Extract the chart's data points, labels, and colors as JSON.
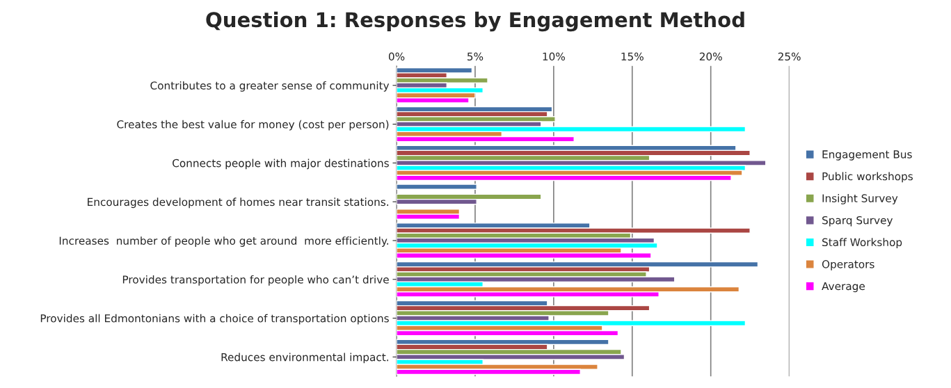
{
  "chart_data": {
    "type": "bar",
    "orientation": "horizontal",
    "title": "Question 1: Responses by Engagement Method",
    "categories": [
      "Contributes to a greater sense of community",
      "Creates the best value for money (cost per person)",
      "Connects people with major destinations",
      "Encourages development of homes near transit stations.",
      "Increases  number of people who get around  more efficiently.",
      "Provides transportation for people who can’t drive",
      "Provides all Edmontonians with a choice of transportation options",
      "Reduces environmental impact."
    ],
    "series": [
      {
        "name": "Engagement Bus",
        "color": "#4572a7",
        "values": [
          4.8,
          9.9,
          21.6,
          5.1,
          12.3,
          23.0,
          9.6,
          13.5
        ]
      },
      {
        "name": "Public workshops",
        "color": "#aa4643",
        "values": [
          3.2,
          9.6,
          22.5,
          null,
          22.5,
          16.1,
          16.1,
          9.6
        ]
      },
      {
        "name": "Insight Survey",
        "color": "#89a54e",
        "values": [
          5.8,
          10.1,
          16.1,
          9.2,
          14.9,
          15.9,
          13.5,
          14.3
        ]
      },
      {
        "name": "Sparq Survey",
        "color": "#71588f",
        "values": [
          3.2,
          9.2,
          23.5,
          5.1,
          16.4,
          17.7,
          9.7,
          14.5
        ]
      },
      {
        "name": "Staff Workshop",
        "color": "#00ffff",
        "values": [
          5.5,
          22.2,
          22.2,
          null,
          16.6,
          5.5,
          22.2,
          5.5
        ]
      },
      {
        "name": "Operators",
        "color": "#db843d",
        "values": [
          5.0,
          6.7,
          22.0,
          4.0,
          14.3,
          21.8,
          13.1,
          12.8
        ]
      },
      {
        "name": "Average",
        "color": "#ff00ff",
        "values": [
          4.6,
          11.3,
          21.3,
          4.0,
          16.2,
          16.7,
          14.1,
          11.7
        ]
      }
    ],
    "xlim": [
      0,
      25
    ],
    "xticks": [
      {
        "value": 0,
        "label": "0%"
      },
      {
        "value": 5,
        "label": "5%"
      },
      {
        "value": 10,
        "label": "10%"
      },
      {
        "value": 15,
        "label": "15%"
      },
      {
        "value": 20,
        "label": "20%"
      },
      {
        "value": 25,
        "label": "25%"
      }
    ],
    "grid": "x",
    "legend": "right"
  }
}
